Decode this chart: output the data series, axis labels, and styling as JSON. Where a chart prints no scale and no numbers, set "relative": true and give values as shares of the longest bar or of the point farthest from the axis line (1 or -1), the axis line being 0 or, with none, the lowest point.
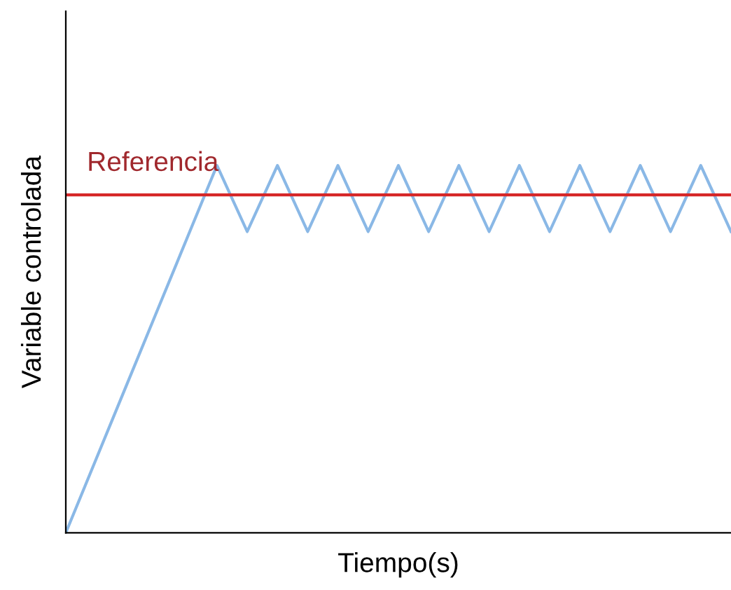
{
  "chart_data": {
    "type": "line",
    "relative": true,
    "xlabel": "Tiempo(s)",
    "ylabel": "Variable controlada",
    "categories": [
      null,
      null,
      null,
      null,
      null,
      null,
      null,
      null,
      null,
      null,
      null,
      null,
      null,
      null,
      null,
      null,
      null,
      null,
      null,
      null,
      null,
      null,
      null
    ],
    "series": [
      {
        "color": "#8ab8e6",
        "values": [
          0,
          0.2,
          0.4,
          0.6,
          0.8,
          1,
          0.82,
          1,
          0.82,
          1,
          0.82,
          1,
          0.82,
          1,
          0.82,
          1,
          0.82,
          1,
          0.82,
          1,
          0.82,
          1,
          0.82
        ]
      }
    ],
    "ref_lines": [
      {
        "axis": "y",
        "value": 0.92,
        "label": "Referencia",
        "color": "#d62728"
      }
    ],
    "tick_labels": false
  }
}
